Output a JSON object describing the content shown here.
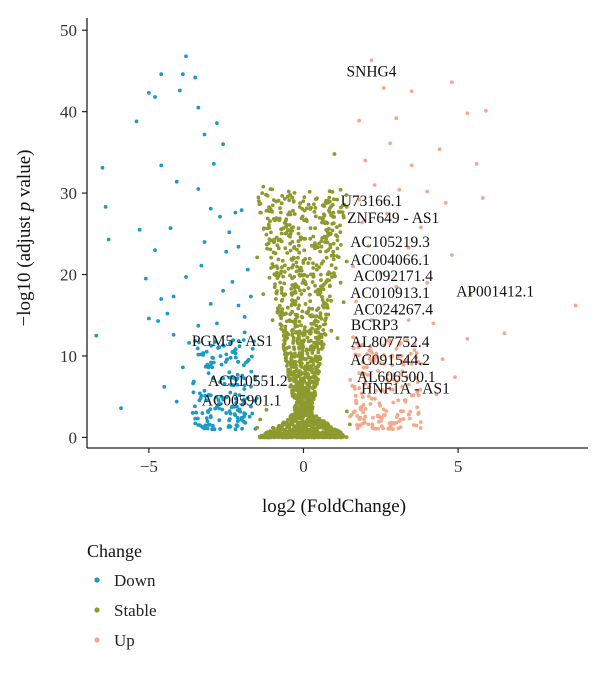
{
  "chart_data": {
    "type": "scatter",
    "title": "",
    "xlabel": "log2 (FoldChange)",
    "ylabel": "−log10 (adjust p value)",
    "ylabel_parts": {
      "pre": "−log10 (adjust ",
      "italic": "p",
      "post": " value)"
    },
    "xlim": [
      -7.0,
      9.2
    ],
    "ylim": [
      -1.3,
      51.5
    ],
    "x_ticks": [
      -5,
      0,
      5
    ],
    "x_tick_labels": [
      "−5",
      "0",
      "5"
    ],
    "y_ticks": [
      0,
      10,
      20,
      30,
      40,
      50
    ],
    "y_tick_labels": [
      "0",
      "10",
      "20",
      "30",
      "40",
      "50"
    ],
    "grid": false,
    "legend": {
      "title": "Change",
      "position": "bottom-left",
      "entries": [
        {
          "label": "Down",
          "color": "#1a9ac6"
        },
        {
          "label": "Stable",
          "color": "#8c9a2e"
        },
        {
          "label": "Up",
          "color": "#f4a98a"
        }
      ]
    },
    "series": [
      {
        "name": "Down",
        "color": "#1a9ac6",
        "points": [
          [
            -3.8,
            46.8
          ],
          [
            -3.9,
            44.6
          ],
          [
            -3.5,
            44.2
          ],
          [
            -4.6,
            44.6
          ],
          [
            -5.0,
            42.3
          ],
          [
            -5.4,
            38.8
          ],
          [
            -4.0,
            42.6
          ],
          [
            -4.8,
            41.8
          ],
          [
            -6.5,
            33.1
          ],
          [
            -6.4,
            28.3
          ],
          [
            -6.3,
            24.3
          ],
          [
            -6.7,
            12.5
          ],
          [
            -5.9,
            3.6
          ],
          [
            -5.0,
            14.6
          ],
          [
            -5.3,
            25.5
          ],
          [
            -5.1,
            19.5
          ],
          [
            -4.8,
            23.0
          ],
          [
            -4.6,
            17.0
          ],
          [
            -4.6,
            33.4
          ],
          [
            -4.1,
            31.4
          ],
          [
            -4.3,
            25.7
          ],
          [
            -3.4,
            40.5
          ],
          [
            -3.2,
            37.2
          ],
          [
            -2.8,
            38.6
          ],
          [
            -2.6,
            36.0
          ],
          [
            -2.9,
            33.6
          ],
          [
            -3.4,
            30.5
          ],
          [
            -3.0,
            28.1
          ],
          [
            -2.7,
            27.1
          ],
          [
            -2.2,
            27.6
          ],
          [
            -2.4,
            25.2
          ],
          [
            -2.5,
            22.8
          ],
          [
            -2.0,
            27.9
          ],
          [
            -2.1,
            23.4
          ],
          [
            -3.3,
            21.1
          ],
          [
            -3.8,
            19.7
          ],
          [
            -4.2,
            17.3
          ],
          [
            -4.4,
            15.2
          ],
          [
            -4.7,
            14.3
          ],
          [
            -4.2,
            12.6
          ],
          [
            -3.7,
            11.6
          ],
          [
            -3.9,
            8.6
          ],
          [
            -4.5,
            6.2
          ],
          [
            -4.1,
            4.4
          ],
          [
            -3.3,
            5.1
          ],
          [
            -3.5,
            2.3
          ],
          [
            -3.1,
            1.1
          ],
          [
            -2.8,
            14.0
          ],
          [
            -2.3,
            19.1
          ],
          [
            -1.8,
            20.6
          ],
          [
            -1.7,
            17.3
          ],
          [
            -1.9,
            14.8
          ],
          [
            -2.1,
            16.2
          ],
          [
            -1.6,
            11.8
          ],
          [
            -2.9,
            9.2
          ],
          [
            -2.6,
            11.3
          ],
          [
            -3.4,
            13.7
          ],
          [
            -2.4,
            8.0
          ],
          [
            -2.2,
            5.3
          ],
          [
            -2.7,
            6.8
          ],
          [
            -1.9,
            6.4
          ],
          [
            -1.7,
            3.8
          ],
          [
            -2.5,
            3.0
          ],
          [
            -2.0,
            2.4
          ],
          [
            -2.3,
            10.5
          ],
          [
            -1.8,
            9.4
          ],
          [
            -1.9,
            12.9
          ],
          [
            -2.6,
            18.0
          ],
          [
            -3.0,
            16.4
          ],
          [
            -3.2,
            24.0
          ]
        ],
        "dense_region": {
          "x": [
            -3.6,
            -1.5
          ],
          "y": [
            1.0,
            12.0
          ],
          "count": 160
        }
      },
      {
        "name": "Stable",
        "color": "#8c9a2e",
        "points": [
          [
            -1.3,
            30.8
          ],
          [
            -1.4,
            27.6
          ],
          [
            -1.2,
            24.9
          ],
          [
            -1.5,
            22.1
          ],
          [
            1.0,
            34.8
          ],
          [
            1.2,
            30.4
          ],
          [
            1.3,
            27.0
          ],
          [
            0.9,
            28.4
          ],
          [
            1.1,
            24.2
          ],
          [
            1.4,
            21.6
          ],
          [
            -1.1,
            19.6
          ],
          [
            -1.3,
            17.6
          ],
          [
            1.2,
            19.0
          ],
          [
            1.3,
            16.6
          ],
          [
            0.8,
            23.0
          ],
          [
            0.7,
            26.3
          ],
          [
            -0.9,
            22.6
          ],
          [
            -1.0,
            14.4
          ],
          [
            0.9,
            13.1
          ],
          [
            1.1,
            12.2
          ],
          [
            -1.4,
            2.2
          ],
          [
            -1.5,
            1.2
          ],
          [
            -1.2,
            3.4
          ],
          [
            1.4,
            3.2
          ],
          [
            1.5,
            1.6
          ]
        ],
        "shape_hint": "V-shaped dense cloud from (0,0) widening to |x|≈1.5 at y≈30",
        "count": 1400
      },
      {
        "name": "Up",
        "color": "#f4a98a",
        "points": [
          [
            8.8,
            16.2
          ],
          [
            6.5,
            12.8
          ],
          [
            5.3,
            12.1
          ],
          [
            5.6,
            33.6
          ],
          [
            5.3,
            39.8
          ],
          [
            4.8,
            43.6
          ],
          [
            5.9,
            40.1
          ],
          [
            3.5,
            42.5
          ],
          [
            2.6,
            42.9
          ],
          [
            2.2,
            46.3
          ],
          [
            1.8,
            38.9
          ],
          [
            3.0,
            39.2
          ],
          [
            4.4,
            35.4
          ],
          [
            4.0,
            30.2
          ],
          [
            3.5,
            33.4
          ],
          [
            2.7,
            27.5
          ],
          [
            3.8,
            25.8
          ],
          [
            4.8,
            22.4
          ],
          [
            5.4,
            17.6
          ],
          [
            4.0,
            19.0
          ],
          [
            3.4,
            14.4
          ],
          [
            4.5,
            9.6
          ],
          [
            3.2,
            8.1
          ],
          [
            2.8,
            11.9
          ],
          [
            4.3,
            5.3
          ],
          [
            2.4,
            2.6
          ],
          [
            3.0,
            1.8
          ],
          [
            4.9,
            7.4
          ],
          [
            5.8,
            29.4
          ],
          [
            2.0,
            34.0
          ],
          [
            2.3,
            31.0
          ],
          [
            1.8,
            29.2
          ],
          [
            1.9,
            26.4
          ],
          [
            2.1,
            23.5
          ],
          [
            2.5,
            20.2
          ],
          [
            3.0,
            18.5
          ],
          [
            1.7,
            16.7
          ],
          [
            2.2,
            14.4
          ],
          [
            1.6,
            12.3
          ],
          [
            2.6,
            10.1
          ],
          [
            2.0,
            6.6
          ],
          [
            1.7,
            4.2
          ],
          [
            3.4,
            23.3
          ],
          [
            3.1,
            30.4
          ],
          [
            2.8,
            36.1
          ],
          [
            4.2,
            14.0
          ],
          [
            4.6,
            28.8
          ],
          [
            1.6,
            21.0
          ]
        ],
        "dense_region": {
          "x": [
            1.5,
            3.8
          ],
          "y": [
            1.0,
            12.0
          ],
          "count": 170
        }
      }
    ],
    "annotations": [
      {
        "label": "SNHG4",
        "x": 2.2,
        "y": 44.3
      },
      {
        "label": "U73166.1",
        "x": 2.2,
        "y": 28.4
      },
      {
        "label": "ZNF649 - AS1",
        "x": 2.9,
        "y": 26.3
      },
      {
        "label": "AC105219.3",
        "x": 2.8,
        "y": 23.4
      },
      {
        "label": "AC004066.1",
        "x": 2.8,
        "y": 21.2
      },
      {
        "label": "AC092171.4",
        "x": 2.9,
        "y": 19.2
      },
      {
        "label": "AC010913.1",
        "x": 2.8,
        "y": 17.1
      },
      {
        "label": "AP001412.1",
        "x": 6.2,
        "y": 17.3
      },
      {
        "label": "AC024267.4",
        "x": 2.9,
        "y": 15.1
      },
      {
        "label": "BCRP3",
        "x": 2.3,
        "y": 13.2
      },
      {
        "label": "PGM5 - AS1",
        "x": -2.3,
        "y": 11.2
      },
      {
        "label": "AL807752.4",
        "x": 2.8,
        "y": 11.1
      },
      {
        "label": "AC091544.2",
        "x": 2.8,
        "y": 8.9
      },
      {
        "label": "AL606500.1",
        "x": 3.0,
        "y": 6.8
      },
      {
        "label": "AC010551.2",
        "x": -1.8,
        "y": 6.3
      },
      {
        "label": "HNF1A - AS1",
        "x": 3.3,
        "y": 5.4
      },
      {
        "label": "AC005901.1",
        "x": -2.0,
        "y": 3.9
      }
    ]
  }
}
